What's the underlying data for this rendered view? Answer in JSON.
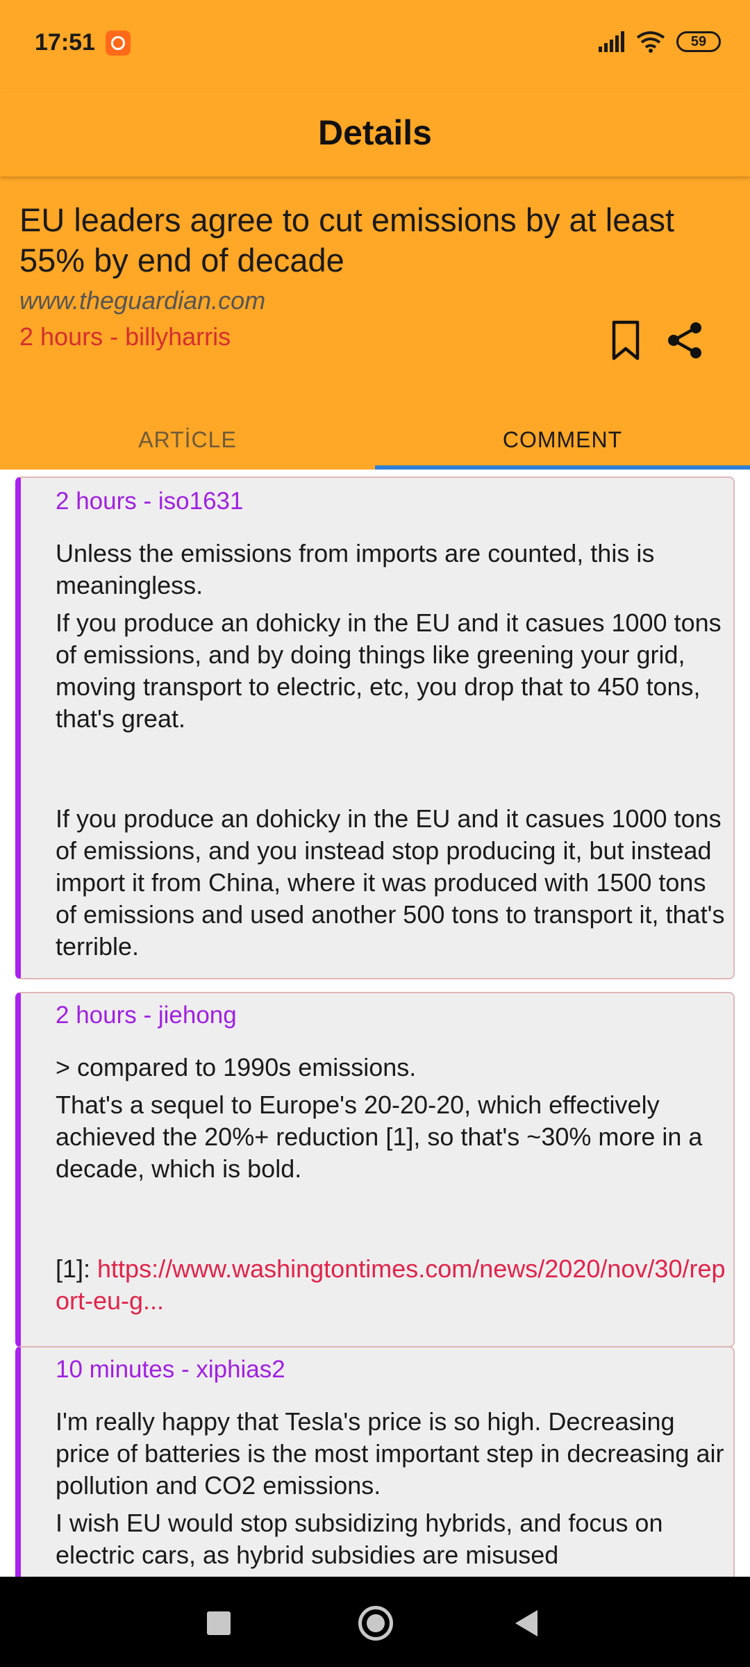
{
  "status_bar": {
    "time": "17:51",
    "battery": "59",
    "icons": [
      "mi-notification-icon",
      "signal-icon",
      "wifi-icon",
      "battery-icon"
    ]
  },
  "app_bar": {
    "title": "Details"
  },
  "article": {
    "title": "EU leaders agree to cut emissions by at least 55% by end of decade",
    "source": "www.theguardian.com",
    "time": "2 hours",
    "separator": " - ",
    "author": "billyharris"
  },
  "tabs": [
    {
      "label": "ARTİCLE",
      "selected": false
    },
    {
      "label": "COMMENT",
      "selected": true
    }
  ],
  "comments": [
    {
      "time": "2 hours",
      "author": "iso1631",
      "paragraphs": [
        "Unless the emissions from imports are counted, this is meaningless.",
        "If you produce an dohicky in the EU and it casues 1000 tons of emissions, and by doing things like greening your grid, moving transport to electric, etc, you drop that to 450 tons, that's great.",
        "If you produce an dohicky in the EU and it casues 1000 tons of emissions, and you instead stop producing it, but instead import it from China, where it was produced with 1500 tons of emissions and used another 500 tons to transport it, that's terrible."
      ]
    },
    {
      "time": "2 hours",
      "author": "jiehong",
      "paragraphs": [
        "> compared to 1990s emissions.",
        "That's a sequel to Europe's 20-20-20, which effectively achieved the 20%+ reduction [1], so that's ~30% more in a decade, which is bold."
      ],
      "ref_label": "[1]: ",
      "link": "https://www.washingtontimes.com/news/2020/nov/30/report-eu-g..."
    },
    {
      "time": "10 minutes",
      "author": "xiphias2",
      "paragraphs": [
        "I'm really happy that Tesla's price is so high. Decreasing price of batteries is the most important step in decreasing air pollution and CO2 emissions.",
        "I wish EU would stop subsidizing hybrids, and focus on electric cars, as hybrid subsidies are misused"
      ]
    }
  ],
  "colors": {
    "primary": "#FFA726",
    "tab_indicator": "#2e7fd6",
    "comment_accent": "#a020e0",
    "meta_red": "#d32f2f",
    "link": "#e0244a"
  }
}
